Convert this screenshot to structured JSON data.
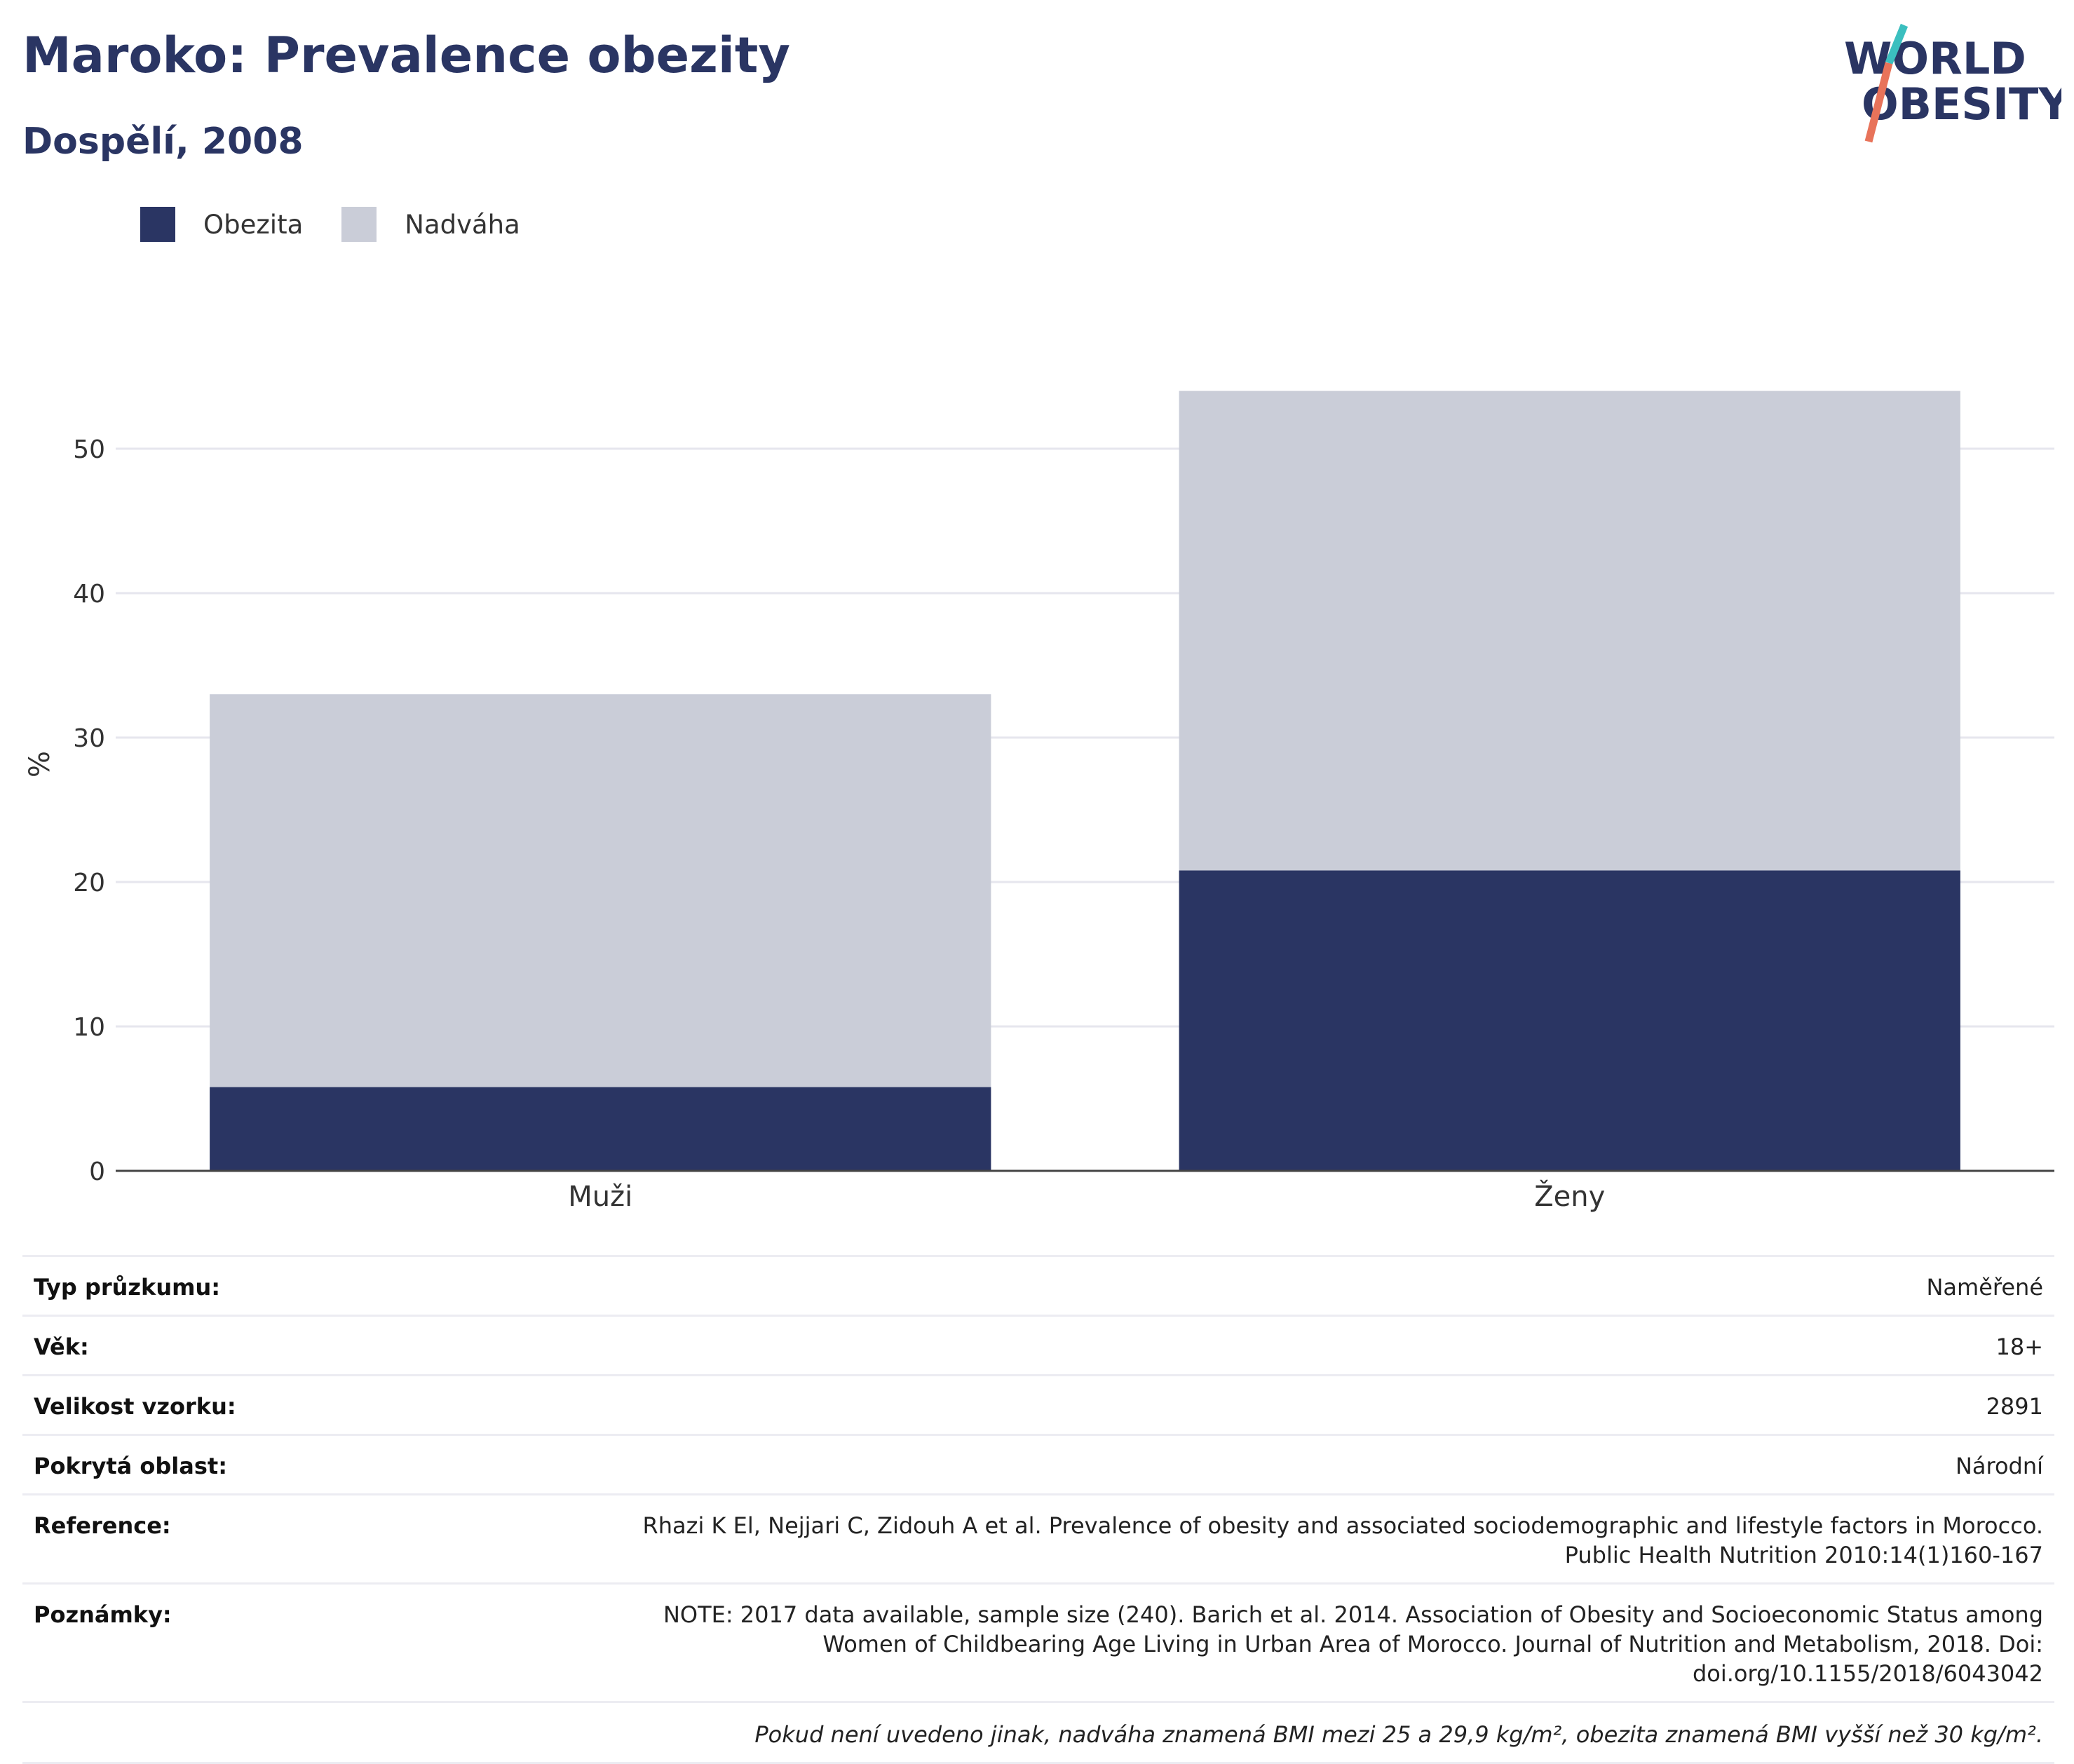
{
  "header": {
    "title": "Maroko: Prevalence obezity",
    "subtitle": "Dospělí, 2008"
  },
  "logo": {
    "line1": "WORLD",
    "line2": "OBESITY",
    "accent_colors": [
      "#3bbfbf",
      "#e8735a"
    ]
  },
  "legend": [
    {
      "label": "Obezita",
      "color": "#2a3563"
    },
    {
      "label": "Nadváha",
      "color": "#cacdd8"
    }
  ],
  "chart_data": {
    "type": "bar",
    "stacked": true,
    "categories": [
      "Muži",
      "Ženy"
    ],
    "series": [
      {
        "name": "Obezita",
        "color": "#2a3563",
        "values": [
          5.8,
          20.8
        ]
      },
      {
        "name": "Nadváha",
        "color": "#cacdd8",
        "values": [
          27.2,
          33.2
        ]
      }
    ],
    "ylabel": "%",
    "ylim": [
      0,
      56
    ],
    "yticks": [
      0,
      10,
      20,
      30,
      40,
      50
    ],
    "grid": true,
    "legend_position": "top-left"
  },
  "info": {
    "rows": [
      {
        "label": "Typ průzkumu:",
        "value": "Naměřené"
      },
      {
        "label": "Věk:",
        "value": "18+"
      },
      {
        "label": "Velikost vzorku:",
        "value": "2891"
      },
      {
        "label": "Pokrytá oblast:",
        "value": "Národní"
      },
      {
        "label": "Reference:",
        "value": "Rhazi K El, Nejjari C, Zidouh A et al. Prevalence of obesity and associated sociodemographic and lifestyle factors in Morocco. Public Health Nutrition 2010:14(1)160-167"
      },
      {
        "label": "Poznámky:",
        "value": "NOTE: 2017 data available, sample size (240). Barich et al. 2014. Association of Obesity and Socioeconomic Status among Women of Childbearing Age Living in Urban Area of Morocco. Journal of Nutrition and Metabolism, 2018. Doi: doi.org/10.1155/2018/6043042"
      }
    ],
    "footnote": "Pokud není uvedeno jinak, nadváha znamená BMI mezi 25 a 29,9 kg/m², obezita znamená BMI vyšší než 30 kg/m²."
  }
}
